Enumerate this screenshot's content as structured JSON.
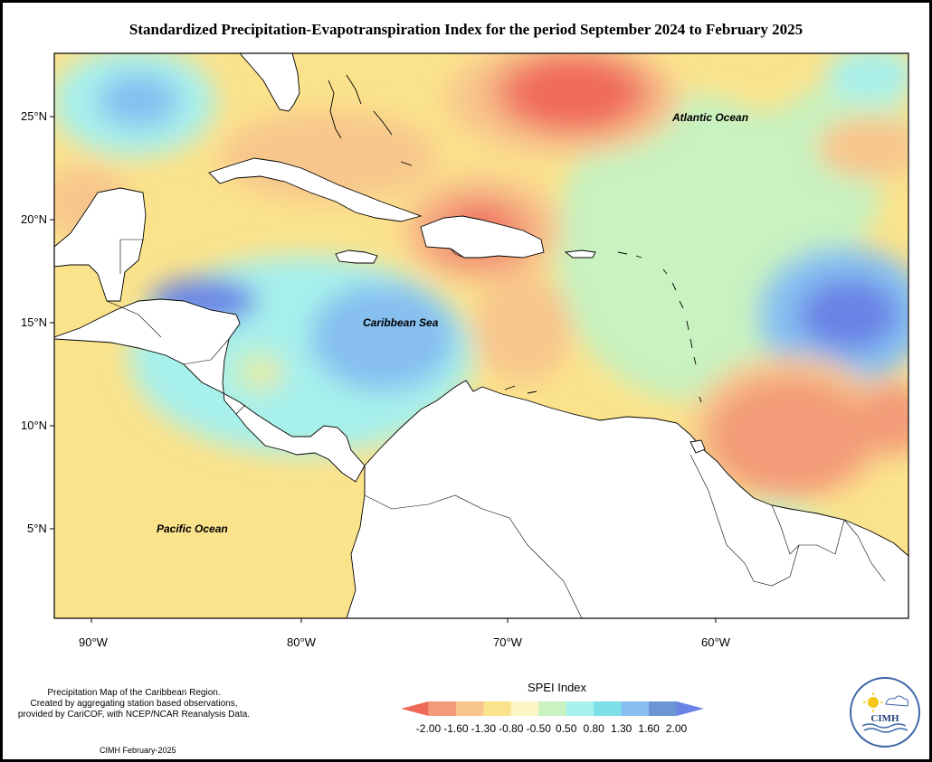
{
  "title": "Standardized Precipitation-Evapotranspiration Index for the period September 2024 to February 2025",
  "map": {
    "lat_ticks": [
      "25°N",
      "20°N",
      "15°N",
      "10°N",
      "5°N"
    ],
    "lon_ticks": [
      "90°W",
      "80°W",
      "70°W",
      "60°W"
    ],
    "ocean_labels": {
      "atlantic": "Atlantic Ocean",
      "caribbean": "Caribbean Sea",
      "pacific": "Pacific Ocean"
    }
  },
  "legend": {
    "title": "SPEI Index",
    "ticks": [
      "-2.00",
      "-1.60",
      "-1.30",
      "-0.80",
      "-0.50",
      "0.50",
      "0.80",
      "1.30",
      "1.60",
      "2.00"
    ],
    "colors": [
      "#f06a5a",
      "#f39b78",
      "#f8c68c",
      "#fbe38c",
      "#fcf6c6",
      "#c8f2c0",
      "#a7f0ec",
      "#7ddfe8",
      "#86bff0",
      "#6c95d6",
      "#6b83e6"
    ]
  },
  "credits": {
    "line1": "Precipitation Map of the Caribbean Region.",
    "line2": "Created by aggregating station based observations,",
    "line3": "provided by CariCOF, with NCEP/NCAR Reanalysis Data.",
    "footer": "CIMH February-2025"
  },
  "logo": {
    "name": "CIMH"
  }
}
